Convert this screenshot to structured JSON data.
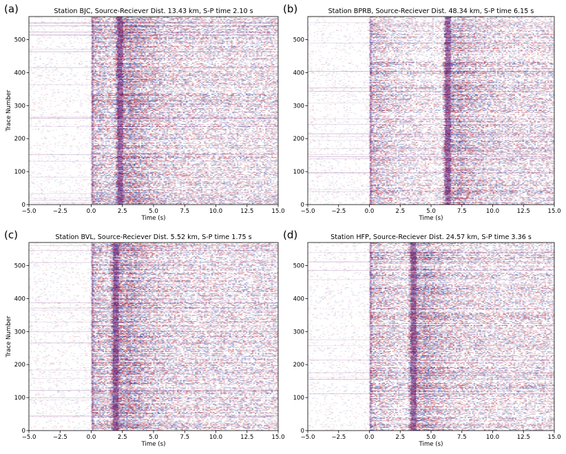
{
  "chart_data": [
    {
      "type": "heatmap",
      "panel_label": "(a)",
      "title": "Station BJC, Source-Reciever Dist. 13.43 km, S-P time 2.10 s",
      "xlabel": "Time (s)",
      "ylabel": "Trace Number",
      "xlim": [
        -5.0,
        15.0
      ],
      "ylim": [
        0,
        570
      ],
      "xticks": [
        -5.0,
        -2.5,
        0.0,
        2.5,
        5.0,
        7.5,
        10.0,
        12.5,
        15.0
      ],
      "xtick_labels": [
        "−5.0",
        "−2.5",
        "0.0",
        "2.5",
        "5.0",
        "7.5",
        "10.0",
        "12.5",
        "15.0"
      ],
      "yticks": [
        0,
        100,
        200,
        300,
        400,
        500
      ],
      "ytick_labels": [
        "0",
        "100",
        "200",
        "300",
        "400",
        "500"
      ],
      "p_arrival_s": 0.0,
      "s_arrival_s": 2.1,
      "colormap": "seismic (blue-white-red)",
      "grid": false
    },
    {
      "type": "heatmap",
      "panel_label": "(b)",
      "title": "Station BPRB, Source-Reciever Dist. 48.34 km, S-P time 6.15 s",
      "xlabel": "Time (s)",
      "ylabel": "",
      "xlim": [
        -5.0,
        15.0
      ],
      "ylim": [
        0,
        570
      ],
      "xticks": [
        -5.0,
        -2.5,
        0.0,
        2.5,
        5.0,
        7.5,
        10.0,
        12.5,
        15.0
      ],
      "xtick_labels": [
        "−5.0",
        "−2.5",
        "0.0",
        "2.5",
        "5.0",
        "7.5",
        "10.0",
        "12.5",
        "15.0"
      ],
      "yticks": [
        0,
        100,
        200,
        300,
        400,
        500
      ],
      "ytick_labels": [
        "0",
        "100",
        "200",
        "300",
        "400",
        "500"
      ],
      "p_arrival_s": 0.0,
      "s_arrival_s": 6.15,
      "colormap": "seismic (blue-white-red)",
      "grid": false
    },
    {
      "type": "heatmap",
      "panel_label": "(c)",
      "title": "Station BVL, Source-Reciever Dist. 5.52 km, S-P time 1.75 s",
      "xlabel": "Time (s)",
      "ylabel": "Trace Number",
      "xlim": [
        -5.0,
        15.0
      ],
      "ylim": [
        0,
        570
      ],
      "xticks": [
        -5.0,
        -2.5,
        0.0,
        2.5,
        5.0,
        7.5,
        10.0,
        12.5,
        15.0
      ],
      "xtick_labels": [
        "−5.0",
        "−2.5",
        "0.0",
        "2.5",
        "5.0",
        "7.5",
        "10.0",
        "12.5",
        "15.0"
      ],
      "yticks": [
        0,
        100,
        200,
        300,
        400,
        500
      ],
      "ytick_labels": [
        "0",
        "100",
        "200",
        "300",
        "400",
        "500"
      ],
      "p_arrival_s": 0.0,
      "s_arrival_s": 1.75,
      "colormap": "seismic (blue-white-red)",
      "grid": false
    },
    {
      "type": "heatmap",
      "panel_label": "(d)",
      "title": "Station HFP, Source-Reciever Dist. 24.57 km, S-P time 3.36 s",
      "xlabel": "Time (s)",
      "ylabel": "",
      "xlim": [
        -5.0,
        15.0
      ],
      "ylim": [
        0,
        570
      ],
      "xticks": [
        -5.0,
        -2.5,
        0.0,
        2.5,
        5.0,
        7.5,
        10.0,
        12.5,
        15.0
      ],
      "xtick_labels": [
        "−5.0",
        "−2.5",
        "0.0",
        "2.5",
        "5.0",
        "7.5",
        "10.0",
        "12.5",
        "15.0"
      ],
      "yticks": [
        0,
        100,
        200,
        300,
        400,
        500
      ],
      "ytick_labels": [
        "0",
        "100",
        "200",
        "300",
        "400",
        "500"
      ],
      "p_arrival_s": 0.0,
      "s_arrival_s": 3.36,
      "colormap": "seismic (blue-white-red)",
      "grid": false
    }
  ],
  "colors": {
    "background": "#ffffff",
    "axis": "#000000",
    "positive": "#b2182b",
    "negative": "#2c3e9e",
    "dark_energy": "#5c0a6e"
  }
}
